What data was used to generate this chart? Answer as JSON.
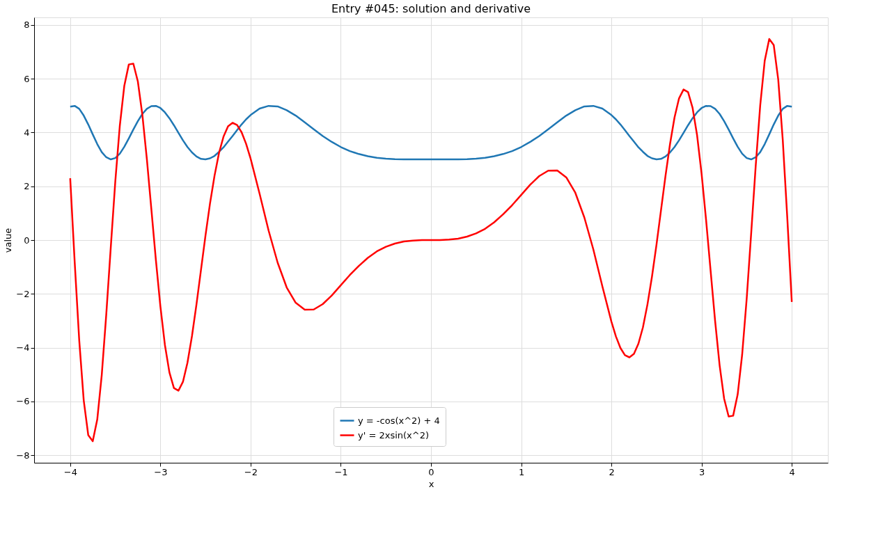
{
  "chart_data": {
    "type": "line",
    "title": "Entry #045: solution and derivative",
    "xlabel": "x",
    "ylabel": "value",
    "x": [
      -4.0,
      -3.95,
      -3.9,
      -3.85,
      -3.8,
      -3.75,
      -3.7,
      -3.65,
      -3.6,
      -3.55,
      -3.5,
      -3.45,
      -3.4,
      -3.35,
      -3.3,
      -3.25,
      -3.2,
      -3.15,
      -3.1,
      -3.05,
      -3.0,
      -2.95,
      -2.9,
      -2.85,
      -2.8,
      -2.75,
      -2.7,
      -2.65,
      -2.6,
      -2.55,
      -2.5,
      -2.45,
      -2.4,
      -2.35,
      -2.3,
      -2.25,
      -2.2,
      -2.15,
      -2.1,
      -2.05,
      -2.0,
      -1.9,
      -1.8,
      -1.7,
      -1.6,
      -1.5,
      -1.4,
      -1.3,
      -1.2,
      -1.1,
      -1.0,
      -0.9,
      -0.8,
      -0.7,
      -0.6,
      -0.5,
      -0.4,
      -0.3,
      -0.2,
      -0.1,
      0.0,
      0.1,
      0.2,
      0.3,
      0.4,
      0.5,
      0.6,
      0.7,
      0.8,
      0.9,
      1.0,
      1.1,
      1.2,
      1.3,
      1.4,
      1.5,
      1.6,
      1.7,
      1.8,
      1.9,
      2.0,
      2.05,
      2.1,
      2.15,
      2.2,
      2.25,
      2.3,
      2.35,
      2.4,
      2.45,
      2.5,
      2.55,
      2.6,
      2.65,
      2.7,
      2.75,
      2.8,
      2.85,
      2.9,
      2.95,
      3.0,
      3.05,
      3.1,
      3.15,
      3.2,
      3.25,
      3.3,
      3.35,
      3.4,
      3.45,
      3.5,
      3.55,
      3.6,
      3.65,
      3.7,
      3.75,
      3.8,
      3.85,
      3.9,
      3.95,
      4.0
    ],
    "series": [
      {
        "name": "y = -cos(x^2) + 4",
        "color": "#1f77b4",
        "values": [
          4.96,
          4.99,
          4.88,
          4.63,
          4.3,
          3.93,
          3.57,
          3.27,
          3.08,
          3.0,
          3.05,
          3.21,
          3.47,
          3.78,
          4.11,
          4.42,
          4.69,
          4.88,
          4.98,
          4.99,
          4.91,
          4.75,
          4.53,
          4.27,
          3.99,
          3.71,
          3.46,
          3.26,
          3.11,
          3.02,
          3.0,
          3.04,
          3.13,
          3.28,
          3.45,
          3.66,
          3.87,
          4.09,
          4.3,
          4.49,
          4.65,
          4.89,
          4.99,
          4.97,
          4.83,
          4.63,
          4.38,
          4.12,
          3.87,
          3.65,
          3.46,
          3.31,
          3.2,
          3.12,
          3.06,
          3.03,
          3.01,
          3.0,
          3.0,
          3.0,
          3.0,
          3.0,
          3.0,
          3.0,
          3.01,
          3.03,
          3.06,
          3.12,
          3.2,
          3.31,
          3.46,
          3.65,
          3.87,
          4.12,
          4.38,
          4.63,
          4.83,
          4.97,
          4.99,
          4.89,
          4.65,
          4.49,
          4.3,
          4.09,
          3.87,
          3.66,
          3.45,
          3.28,
          3.13,
          3.04,
          3.0,
          3.02,
          3.11,
          3.26,
          3.46,
          3.71,
          3.99,
          4.27,
          4.53,
          4.75,
          4.91,
          4.99,
          4.98,
          4.88,
          4.69,
          4.42,
          4.11,
          3.78,
          3.47,
          3.21,
          3.05,
          3.0,
          3.08,
          3.27,
          3.57,
          3.93,
          4.3,
          4.63,
          4.88,
          4.99,
          4.96
        ]
      },
      {
        "name": "y' = 2xsin(x^2)",
        "color": "#ff0000",
        "values": [
          2.3,
          -0.83,
          -3.72,
          -5.96,
          -7.25,
          -7.48,
          -6.67,
          -5.01,
          -2.76,
          -0.26,
          2.18,
          4.25,
          5.74,
          6.53,
          6.56,
          5.9,
          4.66,
          3.01,
          1.14,
          -0.74,
          -2.47,
          -3.9,
          -4.92,
          -5.5,
          -5.6,
          -5.27,
          -4.56,
          -3.57,
          -2.39,
          -1.11,
          0.17,
          1.36,
          2.39,
          3.24,
          3.85,
          4.23,
          4.36,
          4.28,
          4.01,
          3.58,
          3.03,
          1.72,
          0.35,
          -0.84,
          -1.76,
          -2.33,
          -2.59,
          -2.58,
          -2.38,
          -2.06,
          -1.68,
          -1.3,
          -0.96,
          -0.66,
          -0.42,
          -0.25,
          -0.13,
          -0.05,
          -0.02,
          0.0,
          0.0,
          0.0,
          0.02,
          0.05,
          0.13,
          0.25,
          0.42,
          0.66,
          0.96,
          1.3,
          1.68,
          2.06,
          2.38,
          2.58,
          2.59,
          2.33,
          1.76,
          0.84,
          -0.35,
          -1.72,
          -3.03,
          -3.58,
          -4.01,
          -4.28,
          -4.36,
          -4.23,
          -3.85,
          -3.24,
          -2.39,
          -1.36,
          -0.17,
          1.11,
          2.39,
          3.57,
          4.56,
          5.27,
          5.6,
          5.5,
          4.92,
          3.9,
          2.47,
          0.74,
          -1.14,
          -3.01,
          -4.66,
          -5.9,
          -6.56,
          -6.53,
          -5.74,
          -4.25,
          -2.18,
          0.26,
          2.76,
          5.01,
          6.67,
          7.48,
          7.25,
          5.96,
          3.72,
          0.83,
          -2.3
        ]
      }
    ],
    "xlim": [
      -4.4,
      4.4
    ],
    "xticks": [
      -4,
      -3,
      -2,
      -1,
      0,
      1,
      2,
      3,
      4
    ],
    "ylim": [
      -8.28,
      8.28
    ],
    "yticks": [
      -8,
      -6,
      -4,
      -2,
      0,
      2,
      4,
      6,
      8
    ],
    "grid": true,
    "legend": "bottom",
    "marker": "none",
    "line_style": "solid"
  }
}
